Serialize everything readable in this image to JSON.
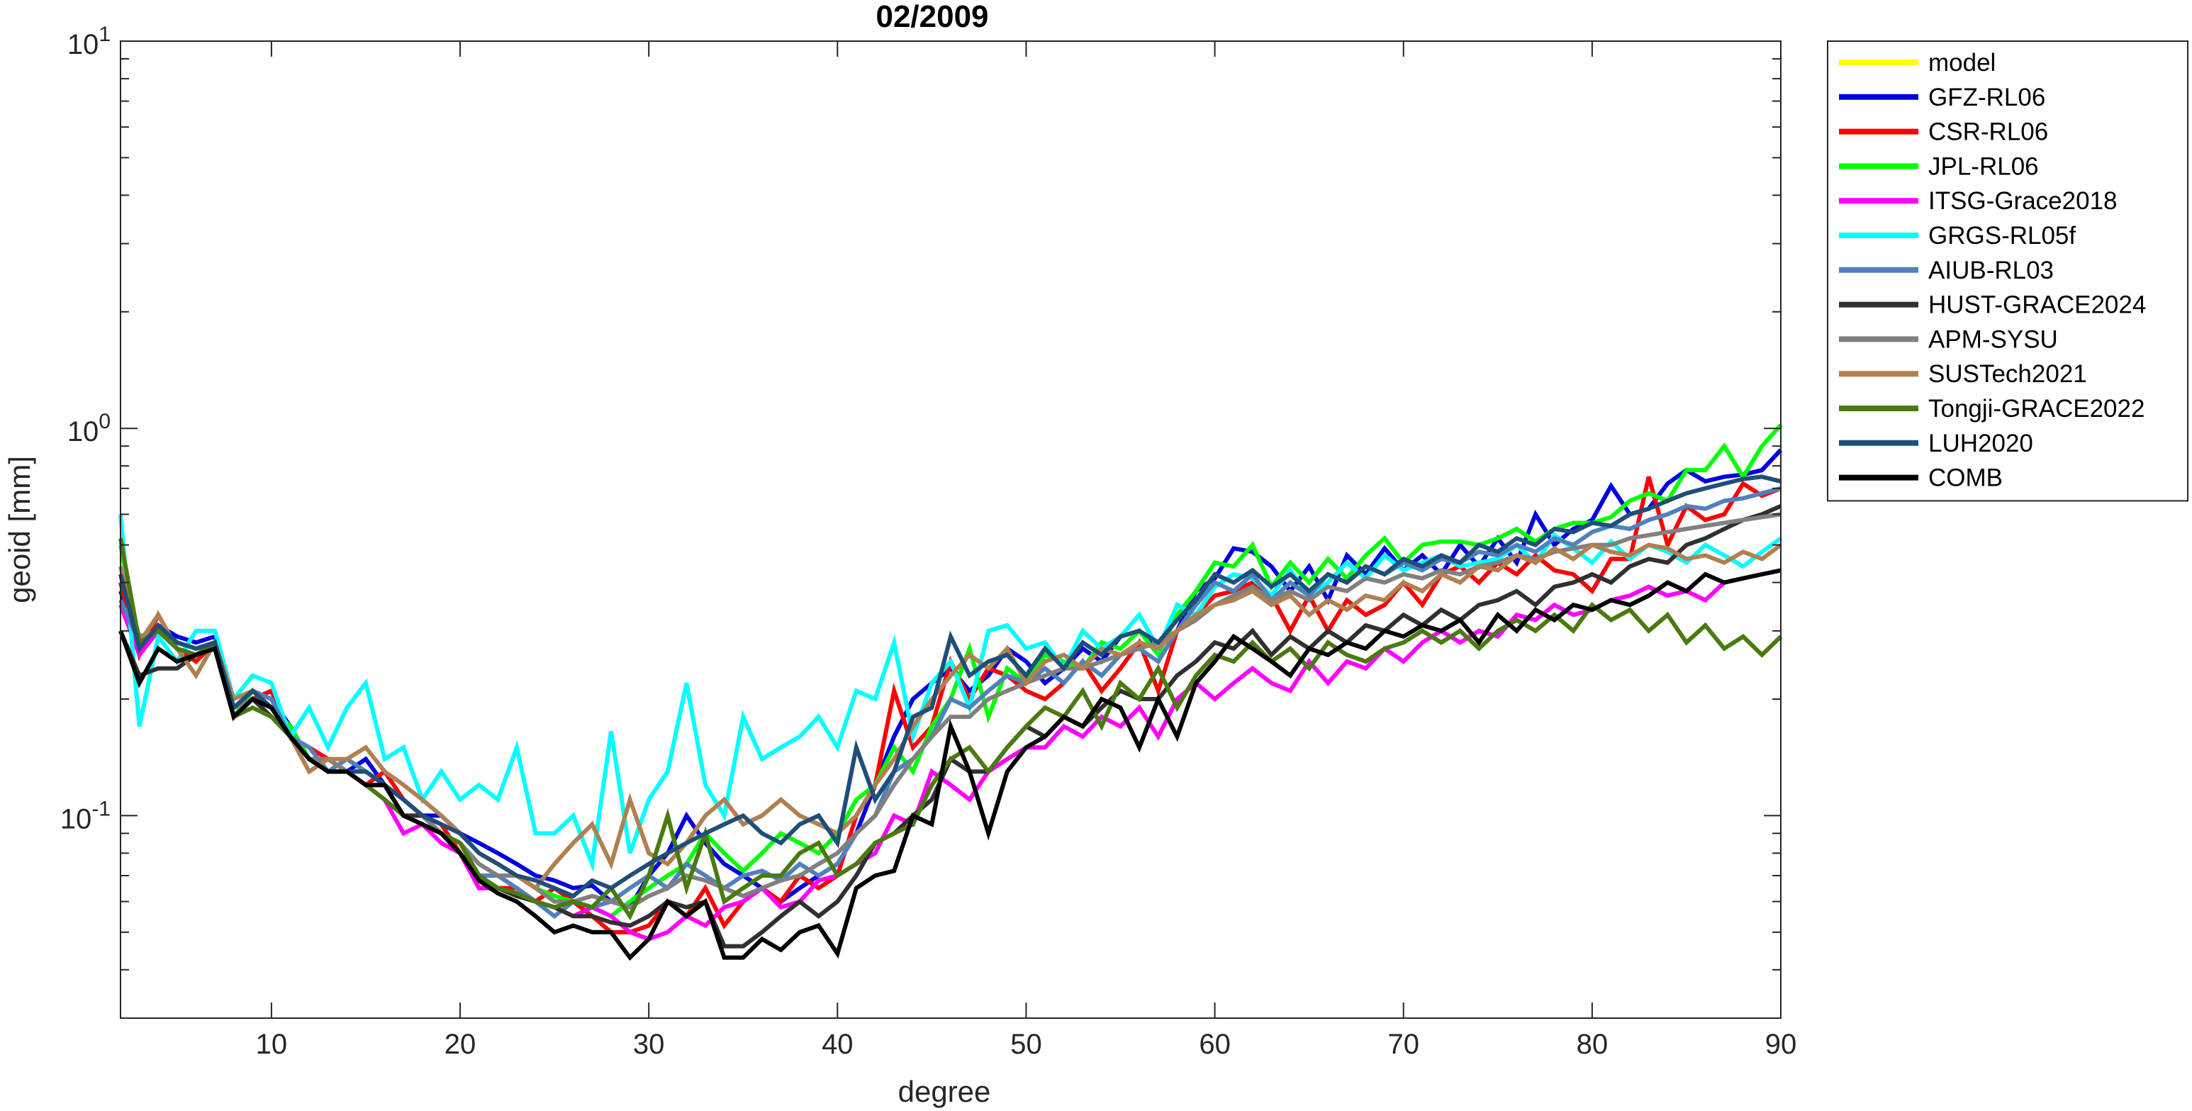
{
  "chart_data": {
    "type": "line",
    "title": "02/2009",
    "xlabel": "degree",
    "ylabel": "geoid [mm]",
    "xlim": [
      2,
      90
    ],
    "ylim": [
      0.03,
      10
    ],
    "yscale": "log",
    "xticks": [
      10,
      20,
      30,
      40,
      50,
      60,
      70,
      80,
      90
    ],
    "yticks": [
      {
        "value": 0.1,
        "base": "10",
        "exp": "-1"
      },
      {
        "value": 1,
        "base": "10",
        "exp": "0"
      },
      {
        "value": 10,
        "base": "10",
        "exp": "1"
      }
    ],
    "grid": false,
    "legend_position": "outside-top-right",
    "x_start": 2,
    "series": [
      {
        "name": "model",
        "color": "#FFFF00",
        "values": []
      },
      {
        "name": "GFZ-RL06",
        "color": "#0000E0",
        "values": [
          0.38,
          0.27,
          0.31,
          0.29,
          0.28,
          0.29,
          0.18,
          0.21,
          0.2,
          0.17,
          0.14,
          0.14,
          0.13,
          0.14,
          0.12,
          0.11,
          0.1,
          0.1,
          0.09,
          0.085,
          0.08,
          0.075,
          0.07,
          0.068,
          0.065,
          0.066,
          0.06,
          0.058,
          0.07,
          0.08,
          0.1,
          0.085,
          0.075,
          0.07,
          0.065,
          0.06,
          0.065,
          0.07,
          0.075,
          0.09,
          0.12,
          0.16,
          0.2,
          0.22,
          0.24,
          0.21,
          0.23,
          0.27,
          0.25,
          0.22,
          0.24,
          0.27,
          0.25,
          0.29,
          0.3,
          0.27,
          0.3,
          0.38,
          0.41,
          0.49,
          0.48,
          0.44,
          0.38,
          0.44,
          0.36,
          0.47,
          0.42,
          0.49,
          0.43,
          0.47,
          0.42,
          0.5,
          0.44,
          0.52,
          0.45,
          0.6,
          0.5,
          0.55,
          0.58,
          0.71,
          0.6,
          0.62,
          0.72,
          0.78,
          0.73,
          0.75,
          0.76,
          0.78,
          0.88
        ]
      },
      {
        "name": "CSR-RL06",
        "color": "#FF0000",
        "values": [
          0.4,
          0.26,
          0.33,
          0.27,
          0.25,
          0.28,
          0.19,
          0.2,
          0.21,
          0.16,
          0.15,
          0.14,
          0.13,
          0.12,
          0.13,
          0.11,
          0.1,
          0.095,
          0.08,
          0.065,
          0.065,
          0.065,
          0.06,
          0.065,
          0.06,
          0.055,
          0.05,
          0.05,
          0.052,
          0.06,
          0.055,
          0.065,
          0.052,
          0.06,
          0.065,
          0.06,
          0.07,
          0.065,
          0.07,
          0.1,
          0.12,
          0.21,
          0.15,
          0.17,
          0.25,
          0.2,
          0.24,
          0.23,
          0.21,
          0.2,
          0.22,
          0.25,
          0.21,
          0.24,
          0.28,
          0.21,
          0.3,
          0.33,
          0.37,
          0.38,
          0.4,
          0.37,
          0.3,
          0.37,
          0.3,
          0.36,
          0.33,
          0.35,
          0.4,
          0.35,
          0.42,
          0.44,
          0.4,
          0.45,
          0.42,
          0.47,
          0.43,
          0.42,
          0.38,
          0.46,
          0.46,
          0.75,
          0.5,
          0.63,
          0.58,
          0.6,
          0.72,
          0.67,
          0.7
        ]
      },
      {
        "name": "JPL-RL06",
        "color": "#00FF00",
        "values": [
          0.5,
          0.27,
          0.3,
          0.28,
          0.27,
          0.28,
          0.18,
          0.21,
          0.19,
          0.17,
          0.14,
          0.13,
          0.14,
          0.13,
          0.12,
          0.11,
          0.1,
          0.09,
          0.085,
          0.075,
          0.07,
          0.07,
          0.065,
          0.062,
          0.06,
          0.058,
          0.055,
          0.06,
          0.065,
          0.07,
          0.075,
          0.09,
          0.08,
          0.072,
          0.08,
          0.09,
          0.085,
          0.08,
          0.09,
          0.11,
          0.12,
          0.15,
          0.13,
          0.17,
          0.2,
          0.27,
          0.18,
          0.24,
          0.22,
          0.26,
          0.25,
          0.24,
          0.28,
          0.27,
          0.3,
          0.26,
          0.33,
          0.38,
          0.45,
          0.44,
          0.5,
          0.39,
          0.45,
          0.4,
          0.46,
          0.41,
          0.47,
          0.52,
          0.45,
          0.5,
          0.51,
          0.51,
          0.5,
          0.52,
          0.55,
          0.51,
          0.55,
          0.57,
          0.57,
          0.59,
          0.65,
          0.68,
          0.65,
          0.78,
          0.78,
          0.9,
          0.75,
          0.9,
          1.02
        ]
      },
      {
        "name": "ITSG-Grace2018",
        "color": "#FF00FF",
        "values": [
          0.35,
          0.26,
          0.3,
          0.27,
          0.26,
          0.28,
          0.18,
          0.2,
          0.19,
          0.16,
          0.14,
          0.14,
          0.13,
          0.12,
          0.11,
          0.09,
          0.095,
          0.085,
          0.08,
          0.065,
          0.065,
          0.063,
          0.06,
          0.058,
          0.055,
          0.058,
          0.055,
          0.05,
          0.048,
          0.05,
          0.055,
          0.052,
          0.058,
          0.06,
          0.065,
          0.058,
          0.06,
          0.068,
          0.07,
          0.075,
          0.08,
          0.1,
          0.095,
          0.13,
          0.12,
          0.11,
          0.13,
          0.14,
          0.15,
          0.15,
          0.17,
          0.16,
          0.18,
          0.17,
          0.19,
          0.16,
          0.2,
          0.22,
          0.2,
          0.22,
          0.24,
          0.22,
          0.21,
          0.25,
          0.22,
          0.25,
          0.24,
          0.27,
          0.25,
          0.28,
          0.3,
          0.28,
          0.3,
          0.29,
          0.33,
          0.32,
          0.35,
          0.33,
          0.34,
          0.36,
          0.37,
          0.39,
          0.37,
          0.38,
          0.36,
          0.4,
          0.41,
          0.42,
          0.43
        ]
      },
      {
        "name": "GRGS-RL05f",
        "color": "#00FFFF",
        "values": [
          0.6,
          0.17,
          0.29,
          0.25,
          0.3,
          0.3,
          0.2,
          0.23,
          0.22,
          0.16,
          0.19,
          0.15,
          0.19,
          0.22,
          0.14,
          0.15,
          0.11,
          0.13,
          0.11,
          0.12,
          0.11,
          0.15,
          0.09,
          0.09,
          0.1,
          0.075,
          0.165,
          0.08,
          0.11,
          0.13,
          0.22,
          0.12,
          0.1,
          0.18,
          0.14,
          0.15,
          0.16,
          0.18,
          0.15,
          0.21,
          0.2,
          0.28,
          0.16,
          0.22,
          0.25,
          0.19,
          0.3,
          0.31,
          0.27,
          0.28,
          0.24,
          0.3,
          0.27,
          0.29,
          0.33,
          0.27,
          0.35,
          0.33,
          0.39,
          0.42,
          0.41,
          0.37,
          0.43,
          0.37,
          0.4,
          0.45,
          0.41,
          0.47,
          0.43,
          0.45,
          0.47,
          0.44,
          0.45,
          0.46,
          0.5,
          0.45,
          0.53,
          0.49,
          0.45,
          0.51,
          0.46,
          0.5,
          0.48,
          0.45,
          0.5,
          0.47,
          0.44,
          0.48,
          0.52
        ]
      },
      {
        "name": "AIUB-RL03",
        "color": "#4F81BD",
        "values": [
          0.36,
          0.28,
          0.3,
          0.27,
          0.26,
          0.28,
          0.19,
          0.21,
          0.2,
          0.16,
          0.15,
          0.13,
          0.14,
          0.13,
          0.12,
          0.1,
          0.1,
          0.09,
          0.085,
          0.07,
          0.07,
          0.065,
          0.06,
          0.055,
          0.06,
          0.058,
          0.06,
          0.065,
          0.07,
          0.065,
          0.075,
          0.07,
          0.065,
          0.07,
          0.072,
          0.068,
          0.075,
          0.07,
          0.075,
          0.09,
          0.1,
          0.13,
          0.14,
          0.16,
          0.2,
          0.19,
          0.21,
          0.23,
          0.22,
          0.24,
          0.22,
          0.25,
          0.23,
          0.26,
          0.27,
          0.25,
          0.3,
          0.35,
          0.4,
          0.38,
          0.42,
          0.36,
          0.4,
          0.37,
          0.42,
          0.4,
          0.44,
          0.42,
          0.45,
          0.43,
          0.46,
          0.45,
          0.48,
          0.47,
          0.5,
          0.48,
          0.52,
          0.5,
          0.54,
          0.56,
          0.55,
          0.58,
          0.6,
          0.63,
          0.62,
          0.65,
          0.66,
          0.68,
          0.7
        ]
      },
      {
        "name": "HUST-GRACE2024",
        "color": "#303030",
        "values": [
          0.3,
          0.23,
          0.24,
          0.24,
          0.26,
          0.27,
          0.18,
          0.2,
          0.18,
          0.16,
          0.14,
          0.13,
          0.13,
          0.12,
          0.12,
          0.1,
          0.1,
          0.09,
          0.08,
          0.07,
          0.065,
          0.062,
          0.06,
          0.058,
          0.055,
          0.055,
          0.053,
          0.052,
          0.055,
          0.06,
          0.058,
          0.06,
          0.046,
          0.046,
          0.05,
          0.055,
          0.06,
          0.055,
          0.06,
          0.07,
          0.085,
          0.09,
          0.1,
          0.11,
          0.14,
          0.13,
          0.13,
          0.15,
          0.17,
          0.16,
          0.18,
          0.17,
          0.19,
          0.21,
          0.2,
          0.2,
          0.23,
          0.25,
          0.28,
          0.27,
          0.3,
          0.26,
          0.29,
          0.27,
          0.3,
          0.28,
          0.31,
          0.3,
          0.33,
          0.31,
          0.34,
          0.32,
          0.35,
          0.36,
          0.38,
          0.35,
          0.39,
          0.4,
          0.42,
          0.4,
          0.44,
          0.46,
          0.45,
          0.5,
          0.52,
          0.55,
          0.58,
          0.6,
          0.63
        ]
      },
      {
        "name": "APM-SYSU",
        "color": "#808080",
        "values": [
          0.42,
          0.29,
          0.3,
          0.28,
          0.27,
          0.28,
          0.19,
          0.2,
          0.19,
          0.16,
          0.14,
          0.14,
          0.13,
          0.13,
          0.12,
          0.11,
          0.1,
          0.09,
          0.085,
          0.075,
          0.07,
          0.07,
          0.065,
          0.06,
          0.06,
          0.062,
          0.06,
          0.058,
          0.062,
          0.065,
          0.07,
          0.068,
          0.065,
          0.062,
          0.065,
          0.068,
          0.07,
          0.075,
          0.08,
          0.09,
          0.1,
          0.12,
          0.14,
          0.16,
          0.18,
          0.18,
          0.2,
          0.21,
          0.22,
          0.23,
          0.24,
          0.24,
          0.25,
          0.26,
          0.27,
          0.28,
          0.3,
          0.32,
          0.35,
          0.37,
          0.39,
          0.36,
          0.38,
          0.36,
          0.39,
          0.38,
          0.41,
          0.4,
          0.42,
          0.41,
          0.43,
          0.42,
          0.44,
          0.45,
          0.47,
          0.46,
          0.48,
          0.49,
          0.5,
          0.5,
          0.52,
          0.53,
          0.54,
          0.55,
          0.56,
          0.57,
          0.58,
          0.59,
          0.6
        ]
      },
      {
        "name": "SUSTech2021",
        "color": "#B08050",
        "values": [
          0.44,
          0.28,
          0.33,
          0.27,
          0.23,
          0.28,
          0.2,
          0.21,
          0.19,
          0.16,
          0.13,
          0.14,
          0.14,
          0.15,
          0.13,
          0.12,
          0.11,
          0.1,
          0.09,
          0.08,
          0.075,
          0.07,
          0.065,
          0.075,
          0.085,
          0.095,
          0.075,
          0.11,
          0.08,
          0.075,
          0.085,
          0.1,
          0.11,
          0.095,
          0.1,
          0.11,
          0.1,
          0.095,
          0.09,
          0.1,
          0.12,
          0.14,
          0.17,
          0.2,
          0.23,
          0.26,
          0.24,
          0.27,
          0.22,
          0.25,
          0.26,
          0.24,
          0.27,
          0.26,
          0.28,
          0.27,
          0.3,
          0.33,
          0.35,
          0.36,
          0.38,
          0.35,
          0.37,
          0.33,
          0.36,
          0.34,
          0.37,
          0.36,
          0.4,
          0.38,
          0.42,
          0.4,
          0.44,
          0.43,
          0.47,
          0.45,
          0.49,
          0.46,
          0.5,
          0.48,
          0.47,
          0.5,
          0.49,
          0.46,
          0.47,
          0.45,
          0.48,
          0.46,
          0.5
        ]
      },
      {
        "name": "Tongji-GRACE2022",
        "color": "#4A7A10",
        "values": [
          0.52,
          0.28,
          0.3,
          0.27,
          0.26,
          0.28,
          0.18,
          0.19,
          0.18,
          0.16,
          0.14,
          0.13,
          0.13,
          0.12,
          0.11,
          0.1,
          0.095,
          0.09,
          0.085,
          0.07,
          0.065,
          0.063,
          0.06,
          0.058,
          0.06,
          0.058,
          0.065,
          0.055,
          0.07,
          0.1,
          0.065,
          0.09,
          0.06,
          0.065,
          0.07,
          0.07,
          0.08,
          0.085,
          0.07,
          0.075,
          0.085,
          0.09,
          0.095,
          0.12,
          0.14,
          0.15,
          0.13,
          0.15,
          0.17,
          0.19,
          0.18,
          0.21,
          0.17,
          0.22,
          0.2,
          0.24,
          0.19,
          0.23,
          0.26,
          0.25,
          0.28,
          0.25,
          0.27,
          0.24,
          0.28,
          0.26,
          0.25,
          0.27,
          0.28,
          0.3,
          0.28,
          0.3,
          0.27,
          0.3,
          0.32,
          0.3,
          0.33,
          0.3,
          0.35,
          0.32,
          0.34,
          0.3,
          0.33,
          0.28,
          0.31,
          0.27,
          0.29,
          0.26,
          0.29
        ]
      },
      {
        "name": "LUH2020",
        "color": "#1F4E79",
        "values": [
          0.42,
          0.27,
          0.31,
          0.28,
          0.27,
          0.28,
          0.19,
          0.21,
          0.19,
          0.16,
          0.14,
          0.13,
          0.13,
          0.13,
          0.12,
          0.11,
          0.1,
          0.095,
          0.09,
          0.08,
          0.075,
          0.07,
          0.068,
          0.065,
          0.062,
          0.068,
          0.065,
          0.07,
          0.075,
          0.08,
          0.085,
          0.09,
          0.095,
          0.1,
          0.09,
          0.085,
          0.095,
          0.1,
          0.085,
          0.15,
          0.11,
          0.13,
          0.18,
          0.19,
          0.29,
          0.23,
          0.25,
          0.26,
          0.23,
          0.27,
          0.24,
          0.28,
          0.26,
          0.29,
          0.3,
          0.28,
          0.32,
          0.36,
          0.42,
          0.4,
          0.43,
          0.39,
          0.42,
          0.38,
          0.42,
          0.4,
          0.44,
          0.42,
          0.46,
          0.44,
          0.47,
          0.45,
          0.5,
          0.48,
          0.52,
          0.5,
          0.55,
          0.54,
          0.57,
          0.56,
          0.6,
          0.62,
          0.65,
          0.68,
          0.7,
          0.72,
          0.74,
          0.75,
          0.73
        ]
      },
      {
        "name": "COMB",
        "color": "#000000",
        "values": [
          0.3,
          0.22,
          0.27,
          0.25,
          0.26,
          0.27,
          0.18,
          0.2,
          0.19,
          0.16,
          0.14,
          0.13,
          0.13,
          0.12,
          0.12,
          0.1,
          0.095,
          0.09,
          0.08,
          0.068,
          0.063,
          0.06,
          0.055,
          0.05,
          0.052,
          0.05,
          0.05,
          0.043,
          0.048,
          0.06,
          0.055,
          0.06,
          0.043,
          0.043,
          0.048,
          0.045,
          0.05,
          0.052,
          0.044,
          0.065,
          0.07,
          0.072,
          0.1,
          0.095,
          0.17,
          0.13,
          0.09,
          0.13,
          0.15,
          0.16,
          0.18,
          0.17,
          0.2,
          0.19,
          0.15,
          0.2,
          0.16,
          0.22,
          0.25,
          0.29,
          0.27,
          0.25,
          0.23,
          0.27,
          0.26,
          0.28,
          0.27,
          0.3,
          0.29,
          0.31,
          0.3,
          0.32,
          0.28,
          0.33,
          0.3,
          0.34,
          0.32,
          0.35,
          0.34,
          0.36,
          0.35,
          0.37,
          0.4,
          0.38,
          0.42,
          0.4,
          0.41,
          0.42,
          0.43
        ]
      }
    ]
  }
}
